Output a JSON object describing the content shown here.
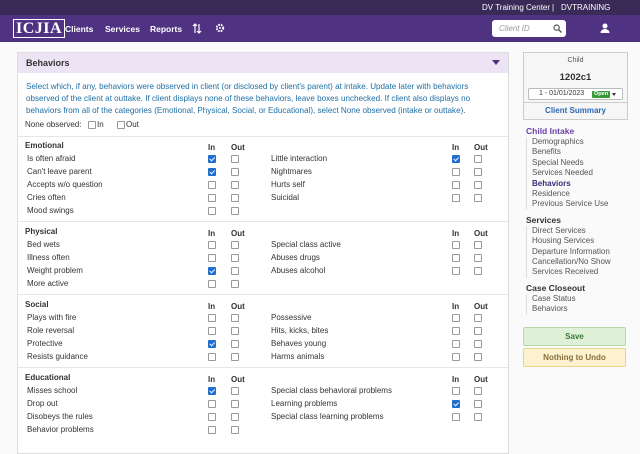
{
  "topbar": {
    "org": "DV Training Center",
    "separator": "|",
    "user": "DVTRAINING"
  },
  "nav": {
    "logo": "ICJIA",
    "links": [
      "Clients",
      "Services",
      "Reports"
    ],
    "search_placeholder": "Client ID"
  },
  "panel": {
    "title": "Behaviors",
    "intro": "Select which, if any, behaviors were observed in client (or disclosed by client's parent) at intake. Update later with behaviors observed of the client at outtake. If client displays none of these behaviors, leave boxes unchecked. If client also displays no behaviors from all of the categories (Emotional, Physical, Social, or Educational), select None observed (intake or outtake).",
    "none_observed": {
      "label": "None observed:",
      "in": "In",
      "out": "Out",
      "in_checked": false,
      "out_checked": false
    },
    "sections": [
      {
        "title": "Emotional",
        "in_label": "In",
        "out_label": "Out",
        "left": [
          {
            "label": "Is often afraid",
            "in": true,
            "out": false
          },
          {
            "label": "Can't leave parent",
            "in": true,
            "out": false
          },
          {
            "label": "Accepts w/o question",
            "in": false,
            "out": false
          },
          {
            "label": "Cries often",
            "in": false,
            "out": false
          },
          {
            "label": "Mood swings",
            "in": false,
            "out": false
          }
        ],
        "right": [
          {
            "label": "Little interaction",
            "in": true,
            "out": false
          },
          {
            "label": "Nightmares",
            "in": false,
            "out": false
          },
          {
            "label": "Hurts self",
            "in": false,
            "out": false
          },
          {
            "label": "Suicidal",
            "in": false,
            "out": false
          }
        ]
      },
      {
        "title": "Physical",
        "in_label": "In",
        "out_label": "Out",
        "left": [
          {
            "label": "Bed wets",
            "in": false,
            "out": false
          },
          {
            "label": "Illness often",
            "in": false,
            "out": false
          },
          {
            "label": "Weight problem",
            "in": true,
            "out": false
          },
          {
            "label": "More active",
            "in": false,
            "out": false
          }
        ],
        "right": [
          {
            "label": "Special class active",
            "in": false,
            "out": false
          },
          {
            "label": "Abuses drugs",
            "in": false,
            "out": false
          },
          {
            "label": "Abuses alcohol",
            "in": false,
            "out": false
          }
        ]
      },
      {
        "title": "Social",
        "in_label": "In",
        "out_label": "Out",
        "left": [
          {
            "label": "Plays with fire",
            "in": false,
            "out": false
          },
          {
            "label": "Role reversal",
            "in": false,
            "out": false
          },
          {
            "label": "Protective",
            "in": true,
            "out": false
          },
          {
            "label": "Resists guidance",
            "in": false,
            "out": false
          }
        ],
        "right": [
          {
            "label": "Possessive",
            "in": false,
            "out": false
          },
          {
            "label": "Hits, kicks, bites",
            "in": false,
            "out": false
          },
          {
            "label": "Behaves young",
            "in": false,
            "out": false
          },
          {
            "label": "Harms animals",
            "in": false,
            "out": false
          }
        ]
      },
      {
        "title": "Educational",
        "in_label": "In",
        "out_label": "Out",
        "left": [
          {
            "label": "Misses school",
            "in": true,
            "out": false
          },
          {
            "label": "Drop out",
            "in": false,
            "out": false
          },
          {
            "label": "Disobeys the rules",
            "in": false,
            "out": false
          },
          {
            "label": "Behavior problems",
            "in": false,
            "out": false
          }
        ],
        "right": [
          {
            "label": "Special class behavioral problems",
            "in": false,
            "out": false
          },
          {
            "label": "Learning problems",
            "in": true,
            "out": false
          },
          {
            "label": "Special class learning problems",
            "in": false,
            "out": false
          }
        ]
      }
    ]
  },
  "sidebar": {
    "client_label": "Child",
    "client_id": "1202c1",
    "episode": "1 - 01/01/2023",
    "status": "Open",
    "summary_link": "Client Summary",
    "menu": [
      {
        "title": "Child Intake",
        "items": [
          "Demographics",
          "Benefits",
          "Special Needs",
          "Services Needed",
          "Behaviors",
          "Residence",
          "Previous Service Use"
        ],
        "active": 4
      },
      {
        "title": "Services",
        "items": [
          "Direct Services",
          "Housing Services",
          "Departure Information",
          "Cancellation/No Show",
          "Services Received"
        ]
      },
      {
        "title": "Case Closeout",
        "items": [
          "Case Status",
          "Behaviors"
        ]
      }
    ],
    "save": "Save",
    "undo": "Nothing to Undo"
  }
}
